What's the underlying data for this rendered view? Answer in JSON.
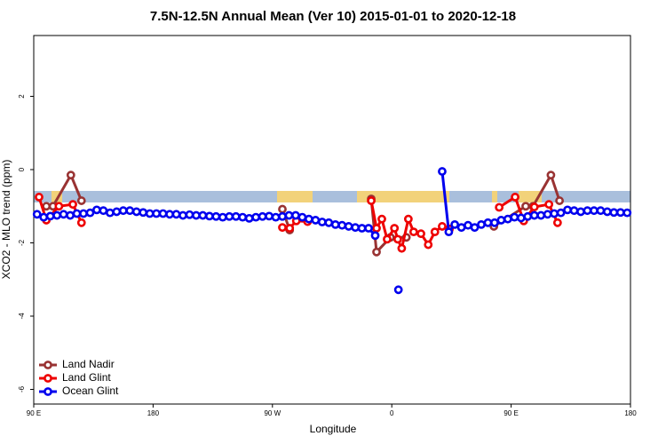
{
  "chart_data": {
    "type": "line",
    "title": "7.5N-12.5N Annual Mean (Ver 10)   2015-01-01 to 2020-12-18",
    "x_label": "Longitude",
    "y_label": "XCO2 - MLO trend (ppm)",
    "xlim": [
      90,
      540
    ],
    "ylim": [
      -6.4,
      3.66
    ],
    "xticks": [
      {
        "value": 90,
        "label": "90 E"
      },
      {
        "value": 180,
        "label": "180"
      },
      {
        "value": 270,
        "label": "90 W"
      },
      {
        "value": 360,
        "label": "0"
      },
      {
        "value": 450,
        "label": "90 E"
      },
      {
        "value": 540,
        "label": "180"
      }
    ],
    "yticks": [
      -6,
      -4,
      -2,
      0,
      2
    ],
    "legend": "bottomleft",
    "series": [
      {
        "name": "Land Nadir",
        "color": "#993333",
        "x": [
          99.5,
          104.5,
          118,
          126,
          200,
          277.5,
          283,
          320,
          344.5,
          348.5,
          359,
          371,
          420,
          437,
          461,
          466.5,
          480,
          486.5
        ],
        "values": [
          -1.0,
          -1.0,
          -0.15,
          -0.85,
          null,
          -1.08,
          -1.65,
          null,
          -0.8,
          -2.25,
          -1.85,
          -1.85,
          null,
          -1.55,
          -1.0,
          -1.0,
          -0.15,
          -0.85
        ]
      },
      {
        "name": "Land Glint",
        "color": "#ee0000",
        "x": [
          94,
          99.5,
          109,
          119.5,
          126,
          200,
          277.5,
          283,
          288,
          296.5,
          320,
          344.5,
          348.5,
          352.5,
          356.5,
          362,
          364.5,
          367.5,
          372.5,
          376.5,
          382,
          387.5,
          392.5,
          398,
          403.5,
          420,
          441,
          453,
          459.5,
          467.5,
          478.5,
          485
        ],
        "values": [
          -0.75,
          -1.38,
          -1.0,
          -0.95,
          -1.45,
          null,
          -1.58,
          -1.6,
          -1.4,
          -1.42,
          null,
          -0.85,
          -1.6,
          -1.35,
          -1.9,
          -1.6,
          -1.9,
          -2.15,
          -1.35,
          -1.7,
          -1.75,
          -2.05,
          -1.7,
          -1.55,
          -1.62,
          null,
          -1.03,
          -0.75,
          -1.4,
          -1.02,
          -0.95,
          -1.45
        ]
      },
      {
        "name": "Ocean Glint",
        "color": "#0000ee",
        "x": [
          92.5,
          97.5,
          102.5,
          107.5,
          112.5,
          117.5,
          122.5,
          127.5,
          132.5,
          137.5,
          142.5,
          147.5,
          152.5,
          157.5,
          162.5,
          167.5,
          172.5,
          177.5,
          182.5,
          187.5,
          192.5,
          197.5,
          202.5,
          207.5,
          212.5,
          217.5,
          222.5,
          227.5,
          232.5,
          237.5,
          242.5,
          247.5,
          252.5,
          257.5,
          262.5,
          267.5,
          272.5,
          277.5,
          282.5,
          287.5,
          292.5,
          297.5,
          302.5,
          307.5,
          312.5,
          317.5,
          322.5,
          327.5,
          332.5,
          337.5,
          342.5,
          347.5,
          355,
          365,
          370,
          398,
          403,
          407.5,
          412.5,
          417.5,
          422.5,
          427.5,
          432.5,
          437.5,
          442.5,
          447.5,
          452.5,
          457.5,
          462.5,
          467.5,
          472.5,
          477.5,
          482.5,
          487.5,
          492.5,
          497.5,
          502.5,
          507.5,
          512.5,
          517.5,
          522.5,
          527.5,
          532.5,
          537.5
        ],
        "values": [
          -1.22,
          -1.3,
          -1.27,
          -1.25,
          -1.22,
          -1.25,
          -1.2,
          -1.2,
          -1.18,
          -1.1,
          -1.12,
          -1.18,
          -1.15,
          -1.12,
          -1.12,
          -1.15,
          -1.17,
          -1.2,
          -1.2,
          -1.2,
          -1.22,
          -1.22,
          -1.25,
          -1.23,
          -1.25,
          -1.25,
          -1.27,
          -1.28,
          -1.3,
          -1.28,
          -1.28,
          -1.3,
          -1.33,
          -1.3,
          -1.28,
          -1.27,
          -1.3,
          -1.28,
          -1.25,
          -1.25,
          -1.3,
          -1.35,
          -1.38,
          -1.43,
          -1.45,
          -1.5,
          -1.52,
          -1.55,
          -1.58,
          -1.6,
          -1.6,
          -1.8,
          null,
          -3.28,
          null,
          -0.05,
          -1.7,
          -1.5,
          -1.58,
          -1.52,
          -1.58,
          -1.5,
          -1.45,
          -1.45,
          -1.38,
          -1.35,
          -1.3,
          -1.32,
          -1.28,
          -1.25,
          -1.25,
          -1.22,
          -1.2,
          -1.18,
          -1.1,
          -1.12,
          -1.15,
          -1.12,
          -1.12,
          -1.12,
          -1.15,
          -1.17,
          -1.17,
          -1.18
        ]
      }
    ]
  }
}
